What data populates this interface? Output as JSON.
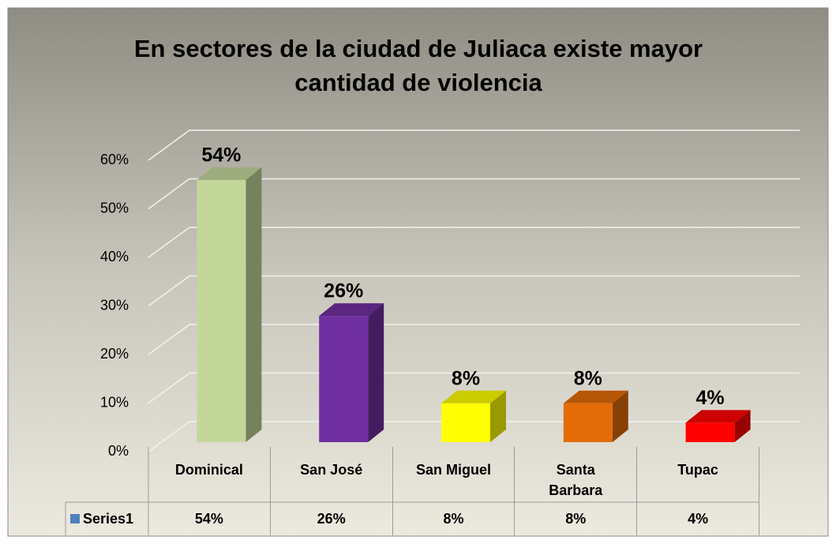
{
  "chart_data": {
    "type": "bar3d",
    "title": "En sectores de la ciudad de Juliaca existe mayor cantidad de violencia",
    "categories": [
      "Dominical",
      "San José",
      "San Miguel",
      "Santa Barbara",
      "Tupac"
    ],
    "series": [
      {
        "name": "Series1",
        "color": "#4f81bd",
        "values": [
          54,
          26,
          8,
          8,
          4
        ],
        "value_labels": [
          "54%",
          "26%",
          "8%",
          "8%",
          "4%"
        ],
        "colors": [
          "#c4d79b",
          "#7030a0",
          "#ffff00",
          "#e36c09",
          "#ff0000"
        ]
      }
    ],
    "ylim": [
      0,
      60
    ],
    "yticks": [
      {
        "value": 0,
        "label": "0%"
      },
      {
        "value": 10,
        "label": "10%"
      },
      {
        "value": 20,
        "label": "20%"
      },
      {
        "value": 30,
        "label": "30%"
      },
      {
        "value": 40,
        "label": "40%"
      },
      {
        "value": 50,
        "label": "50%"
      },
      {
        "value": 60,
        "label": "60%"
      }
    ],
    "grid": true,
    "legend": "data-table"
  }
}
